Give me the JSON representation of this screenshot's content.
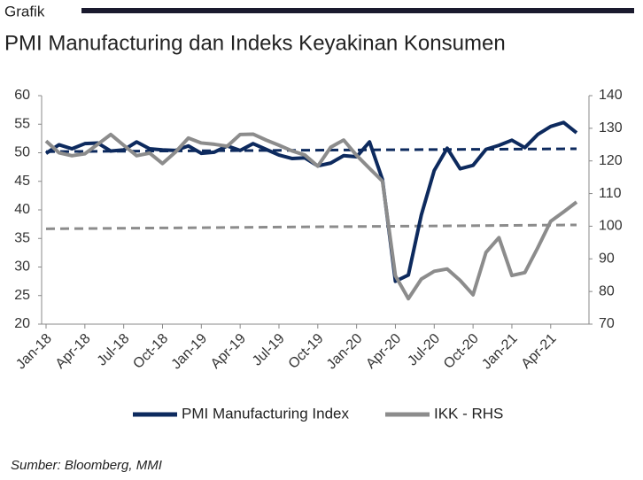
{
  "header": "Grafik",
  "chart_data": {
    "type": "line",
    "title": "PMI Manufacturing dan Indeks Keyakinan Konsumen",
    "categories": [
      "Jan-18",
      null,
      null,
      "Apr-18",
      null,
      null,
      "Jul-18",
      null,
      null,
      "Oct-18",
      null,
      null,
      "Jan-19",
      null,
      null,
      "Apr-19",
      null,
      null,
      "Jul-19",
      null,
      null,
      "Oct-19",
      null,
      null,
      "Jan-20",
      null,
      null,
      "Apr-20",
      null,
      null,
      "Jul-20",
      null,
      null,
      "Oct-20",
      null,
      null,
      "Jan-21",
      null,
      null,
      "Apr-21",
      null,
      null
    ],
    "series": [
      {
        "name": "PMI Manufacturing Index",
        "color": "#0d2a5e",
        "axis": "y",
        "values": [
          49.9,
          51.4,
          50.7,
          51.6,
          51.7,
          50.3,
          50.5,
          51.9,
          50.7,
          50.5,
          50.4,
          51.2,
          49.9,
          50.1,
          51.2,
          50.4,
          51.6,
          50.6,
          49.6,
          49.0,
          49.1,
          47.7,
          48.2,
          49.5,
          49.3,
          51.9,
          45.3,
          27.5,
          28.6,
          39.1,
          46.9,
          50.8,
          47.2,
          47.8,
          50.6,
          51.3,
          52.2,
          50.9,
          53.2,
          54.6,
          55.3,
          53.5
        ]
      },
      {
        "name": "IKK - RHS",
        "color": "#8c8c8c",
        "axis": "y2",
        "values": [
          126.1,
          122.5,
          121.6,
          122.2,
          125.1,
          128.1,
          124.8,
          121.6,
          122.4,
          119.2,
          122.7,
          127.0,
          125.5,
          125.1,
          124.5,
          128.1,
          128.2,
          126.4,
          124.8,
          123.1,
          121.8,
          118.4,
          124.2,
          126.4,
          121.7,
          117.7,
          113.8,
          84.8,
          77.8,
          83.8,
          86.2,
          86.9,
          83.4,
          79.0,
          92.0,
          96.5,
          84.9,
          85.8,
          93.4,
          101.5,
          104.4,
          107.4
        ]
      }
    ],
    "trend_lines": [
      {
        "axis": "y",
        "color": "#0d2a5e",
        "values": [
          50.2,
          50.7
        ]
      },
      {
        "axis": "y2",
        "color": "#8c8c8c",
        "values": [
          99.2,
          100.4
        ]
      }
    ],
    "ylim": [
      20,
      60
    ],
    "yticks": [
      20,
      25,
      30,
      35,
      40,
      45,
      50,
      55,
      60
    ],
    "y2lim": [
      70,
      140
    ],
    "y2ticks": [
      70,
      80,
      90,
      100,
      110,
      120,
      130,
      140
    ],
    "legend": "bottom"
  },
  "footer": "Sumber: Bloomberg, MMI"
}
